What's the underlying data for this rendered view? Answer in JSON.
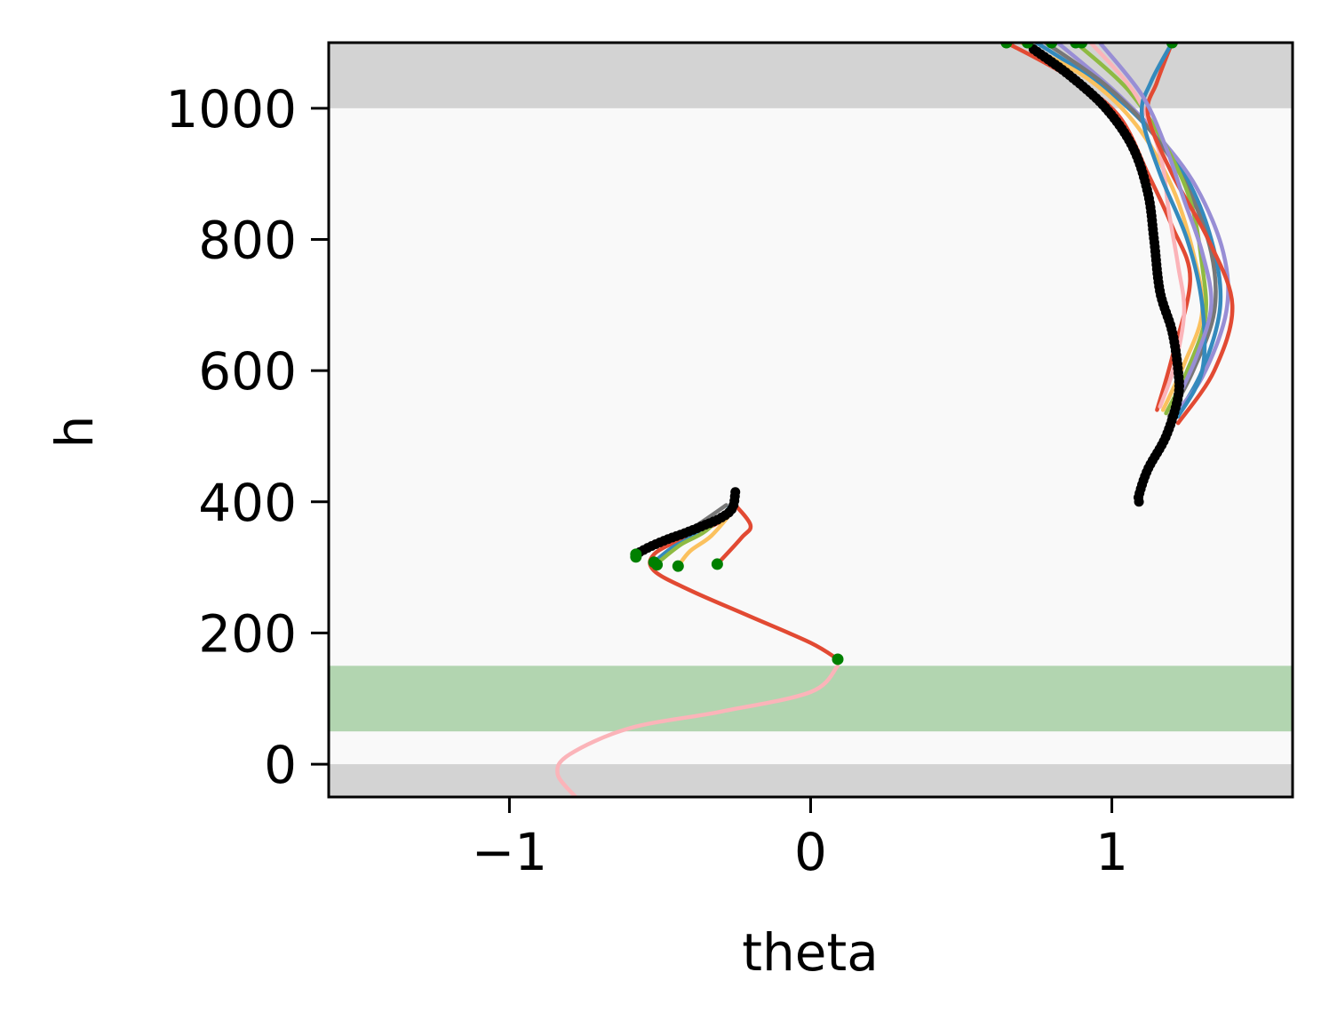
{
  "chart_data": {
    "type": "line",
    "title": "",
    "xlabel": "theta",
    "ylabel": "h",
    "xlim": [
      -1.6,
      1.6
    ],
    "ylim": [
      -50,
      1100
    ],
    "xticks": [
      -1,
      0,
      1
    ],
    "xtick_labels": [
      "−1",
      "0",
      "1"
    ],
    "yticks": [
      0,
      200,
      400,
      600,
      800,
      1000
    ],
    "ytick_labels": [
      "0",
      "200",
      "400",
      "600",
      "800",
      "1000"
    ],
    "grid": false,
    "legend": "none",
    "bands": [
      {
        "role": "forbidden-top",
        "y0": 1000,
        "y1": 1100,
        "color": "#d3d3d3"
      },
      {
        "role": "forbidden-bottom",
        "y0": -50,
        "y1": 0,
        "color": "#d3d3d3"
      },
      {
        "role": "target",
        "y0": 50,
        "y1": 150,
        "color": "#b2d5b0"
      }
    ],
    "background_color": "#f9f9f9",
    "series": [
      {
        "color": "#fbb4b9",
        "points": [
          [
            -0.78,
            -50
          ],
          [
            -0.84,
            -15
          ],
          [
            -0.8,
            15
          ],
          [
            -0.6,
            55
          ],
          [
            -0.3,
            80
          ],
          [
            0.0,
            110
          ],
          [
            0.09,
            150
          ]
        ]
      },
      {
        "color": "#e24a33",
        "points": [
          [
            0.09,
            160
          ],
          [
            0.0,
            185
          ],
          [
            -0.2,
            225
          ],
          [
            -0.4,
            265
          ],
          [
            -0.52,
            295
          ],
          [
            -0.52,
            320
          ],
          [
            -0.42,
            345
          ],
          [
            -0.3,
            370
          ],
          [
            -0.25,
            400
          ]
        ]
      },
      {
        "color": "#e24a33",
        "points": [
          [
            -0.31,
            305
          ],
          [
            -0.23,
            345
          ],
          [
            -0.2,
            365
          ],
          [
            -0.26,
            400
          ]
        ]
      },
      {
        "color": "#348abd",
        "points": [
          [
            -0.52,
            308
          ],
          [
            -0.46,
            330
          ],
          [
            -0.38,
            350
          ],
          [
            -0.3,
            375
          ],
          [
            -0.25,
            405
          ]
        ]
      },
      {
        "color": "#fbc15e",
        "points": [
          [
            -0.44,
            302
          ],
          [
            -0.4,
            325
          ],
          [
            -0.33,
            348
          ],
          [
            -0.26,
            385
          ]
        ]
      },
      {
        "color": "#777777",
        "points": [
          [
            -0.58,
            318
          ],
          [
            -0.5,
            338
          ],
          [
            -0.4,
            358
          ],
          [
            -0.28,
            395
          ]
        ]
      },
      {
        "color": "#8eba42",
        "points": [
          [
            -0.5,
            310
          ],
          [
            -0.43,
            335
          ],
          [
            -0.35,
            355
          ],
          [
            -0.27,
            390
          ]
        ]
      },
      {
        "color": "#e24a33",
        "points": [
          [
            0.65,
            1100
          ],
          [
            0.85,
            1050
          ],
          [
            1.02,
            990
          ],
          [
            1.12,
            900
          ],
          [
            1.2,
            820
          ],
          [
            1.26,
            740
          ],
          [
            1.2,
            620
          ],
          [
            1.15,
            540
          ]
        ]
      },
      {
        "color": "#348abd",
        "points": [
          [
            0.75,
            1100
          ],
          [
            0.95,
            1040
          ],
          [
            1.1,
            980
          ],
          [
            1.24,
            900
          ],
          [
            1.33,
            800
          ],
          [
            1.36,
            700
          ],
          [
            1.3,
            600
          ],
          [
            1.2,
            520
          ]
        ]
      },
      {
        "color": "#988ed5",
        "points": [
          [
            0.82,
            1100
          ],
          [
            1.0,
            1030
          ],
          [
            1.15,
            960
          ],
          [
            1.28,
            880
          ],
          [
            1.37,
            780
          ],
          [
            1.38,
            690
          ],
          [
            1.3,
            590
          ],
          [
            1.2,
            530
          ]
        ]
      },
      {
        "color": "#777777",
        "points": [
          [
            0.78,
            1100
          ],
          [
            0.98,
            1035
          ],
          [
            1.13,
            965
          ],
          [
            1.25,
            880
          ],
          [
            1.33,
            780
          ],
          [
            1.34,
            690
          ],
          [
            1.27,
            600
          ],
          [
            1.19,
            530
          ]
        ]
      },
      {
        "color": "#fbc15e",
        "points": [
          [
            0.7,
            1100
          ],
          [
            0.92,
            1045
          ],
          [
            1.08,
            975
          ],
          [
            1.2,
            880
          ],
          [
            1.27,
            780
          ],
          [
            1.3,
            690
          ],
          [
            1.24,
            610
          ],
          [
            1.17,
            540
          ]
        ]
      },
      {
        "color": "#8eba42",
        "points": [
          [
            0.88,
            1100
          ],
          [
            1.05,
            1030
          ],
          [
            1.17,
            950
          ],
          [
            1.26,
            860
          ],
          [
            1.3,
            760
          ],
          [
            1.31,
            680
          ],
          [
            1.25,
            600
          ],
          [
            1.18,
            535
          ]
        ]
      },
      {
        "color": "#fbb4b9",
        "points": [
          [
            0.93,
            1100
          ],
          [
            1.08,
            1020
          ],
          [
            1.16,
            930
          ],
          [
            1.19,
            840
          ],
          [
            1.22,
            760
          ],
          [
            1.24,
            690
          ],
          [
            1.21,
            610
          ],
          [
            1.16,
            545
          ]
        ]
      },
      {
        "color": "#e24a33",
        "points": [
          [
            1.2,
            1100
          ],
          [
            1.15,
            1040
          ],
          [
            1.12,
            990
          ],
          [
            1.2,
            900
          ],
          [
            1.32,
            800
          ],
          [
            1.4,
            700
          ],
          [
            1.34,
            600
          ],
          [
            1.22,
            520
          ]
        ]
      },
      {
        "color": "#348abd",
        "points": [
          [
            1.2,
            1100
          ],
          [
            1.13,
            1040
          ],
          [
            1.1,
            990
          ],
          [
            1.16,
            900
          ],
          [
            1.25,
            800
          ],
          [
            1.3,
            700
          ],
          [
            1.3,
            600
          ],
          [
            1.22,
            530
          ]
        ]
      },
      {
        "color": "#988ed5",
        "points": [
          [
            0.96,
            1100
          ],
          [
            1.1,
            1020
          ],
          [
            1.18,
            940
          ],
          [
            1.24,
            860
          ],
          [
            1.3,
            780
          ],
          [
            1.33,
            700
          ],
          [
            1.28,
            620
          ],
          [
            1.2,
            540
          ]
        ]
      }
    ],
    "mean_trajectories": [
      {
        "color": "#000000",
        "points": [
          [
            -0.58,
            320
          ],
          [
            -0.54,
            330
          ],
          [
            -0.48,
            342
          ],
          [
            -0.42,
            352
          ],
          [
            -0.36,
            363
          ],
          [
            -0.3,
            375
          ],
          [
            -0.26,
            390
          ],
          [
            -0.25,
            415
          ]
        ]
      },
      {
        "color": "#000000",
        "points": [
          [
            0.74,
            1090
          ],
          [
            0.86,
            1050
          ],
          [
            0.98,
            1000
          ],
          [
            1.07,
            940
          ],
          [
            1.12,
            870
          ],
          [
            1.14,
            800
          ],
          [
            1.16,
            720
          ],
          [
            1.2,
            660
          ],
          [
            1.22,
            600
          ],
          [
            1.22,
            560
          ],
          [
            1.18,
            500
          ],
          [
            1.12,
            450
          ],
          [
            1.09,
            410
          ],
          [
            1.09,
            400
          ]
        ]
      }
    ],
    "endpoints": {
      "color": "#008000",
      "points": [
        [
          0.09,
          160
        ],
        [
          -0.58,
          320
        ],
        [
          -0.58,
          316
        ],
        [
          -0.52,
          308
        ],
        [
          -0.51,
          304
        ],
        [
          -0.44,
          302
        ],
        [
          -0.31,
          305
        ],
        [
          0.65,
          1100
        ],
        [
          0.72,
          1100
        ],
        [
          0.8,
          1100
        ],
        [
          0.88,
          1100
        ],
        [
          0.9,
          1100
        ],
        [
          1.2,
          1100
        ]
      ]
    }
  }
}
